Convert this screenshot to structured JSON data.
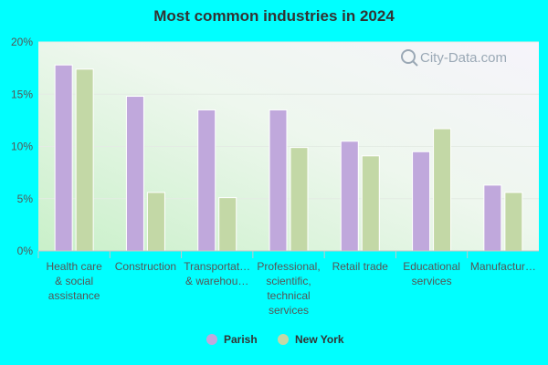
{
  "chart_data": {
    "type": "bar",
    "title": "Most common industries in 2024",
    "categories": [
      [
        "Health care",
        "& social",
        "assistance"
      ],
      [
        "Construction"
      ],
      [
        "Transportat…",
        "& warehou…"
      ],
      [
        "Professional,",
        "scientific,",
        "technical",
        "services"
      ],
      [
        "Retail trade"
      ],
      [
        "Educational",
        "services"
      ],
      [
        "Manufactur…"
      ]
    ],
    "series": [
      {
        "name": "Parish",
        "color": "#c0a8dc",
        "values": [
          17.8,
          14.8,
          13.5,
          13.5,
          10.5,
          9.5,
          6.3
        ]
      },
      {
        "name": "New York",
        "color": "#c3d8a6",
        "values": [
          17.4,
          5.6,
          5.1,
          9.9,
          9.1,
          11.7,
          5.6
        ]
      }
    ],
    "ylim": [
      0,
      20
    ],
    "yticks": [
      0,
      5,
      10,
      15,
      20
    ],
    "ytick_labels": [
      "0%",
      "5%",
      "10%",
      "15%",
      "20%"
    ],
    "grid": true,
    "legend": "bottom-center"
  },
  "watermark": "City-Data.com"
}
